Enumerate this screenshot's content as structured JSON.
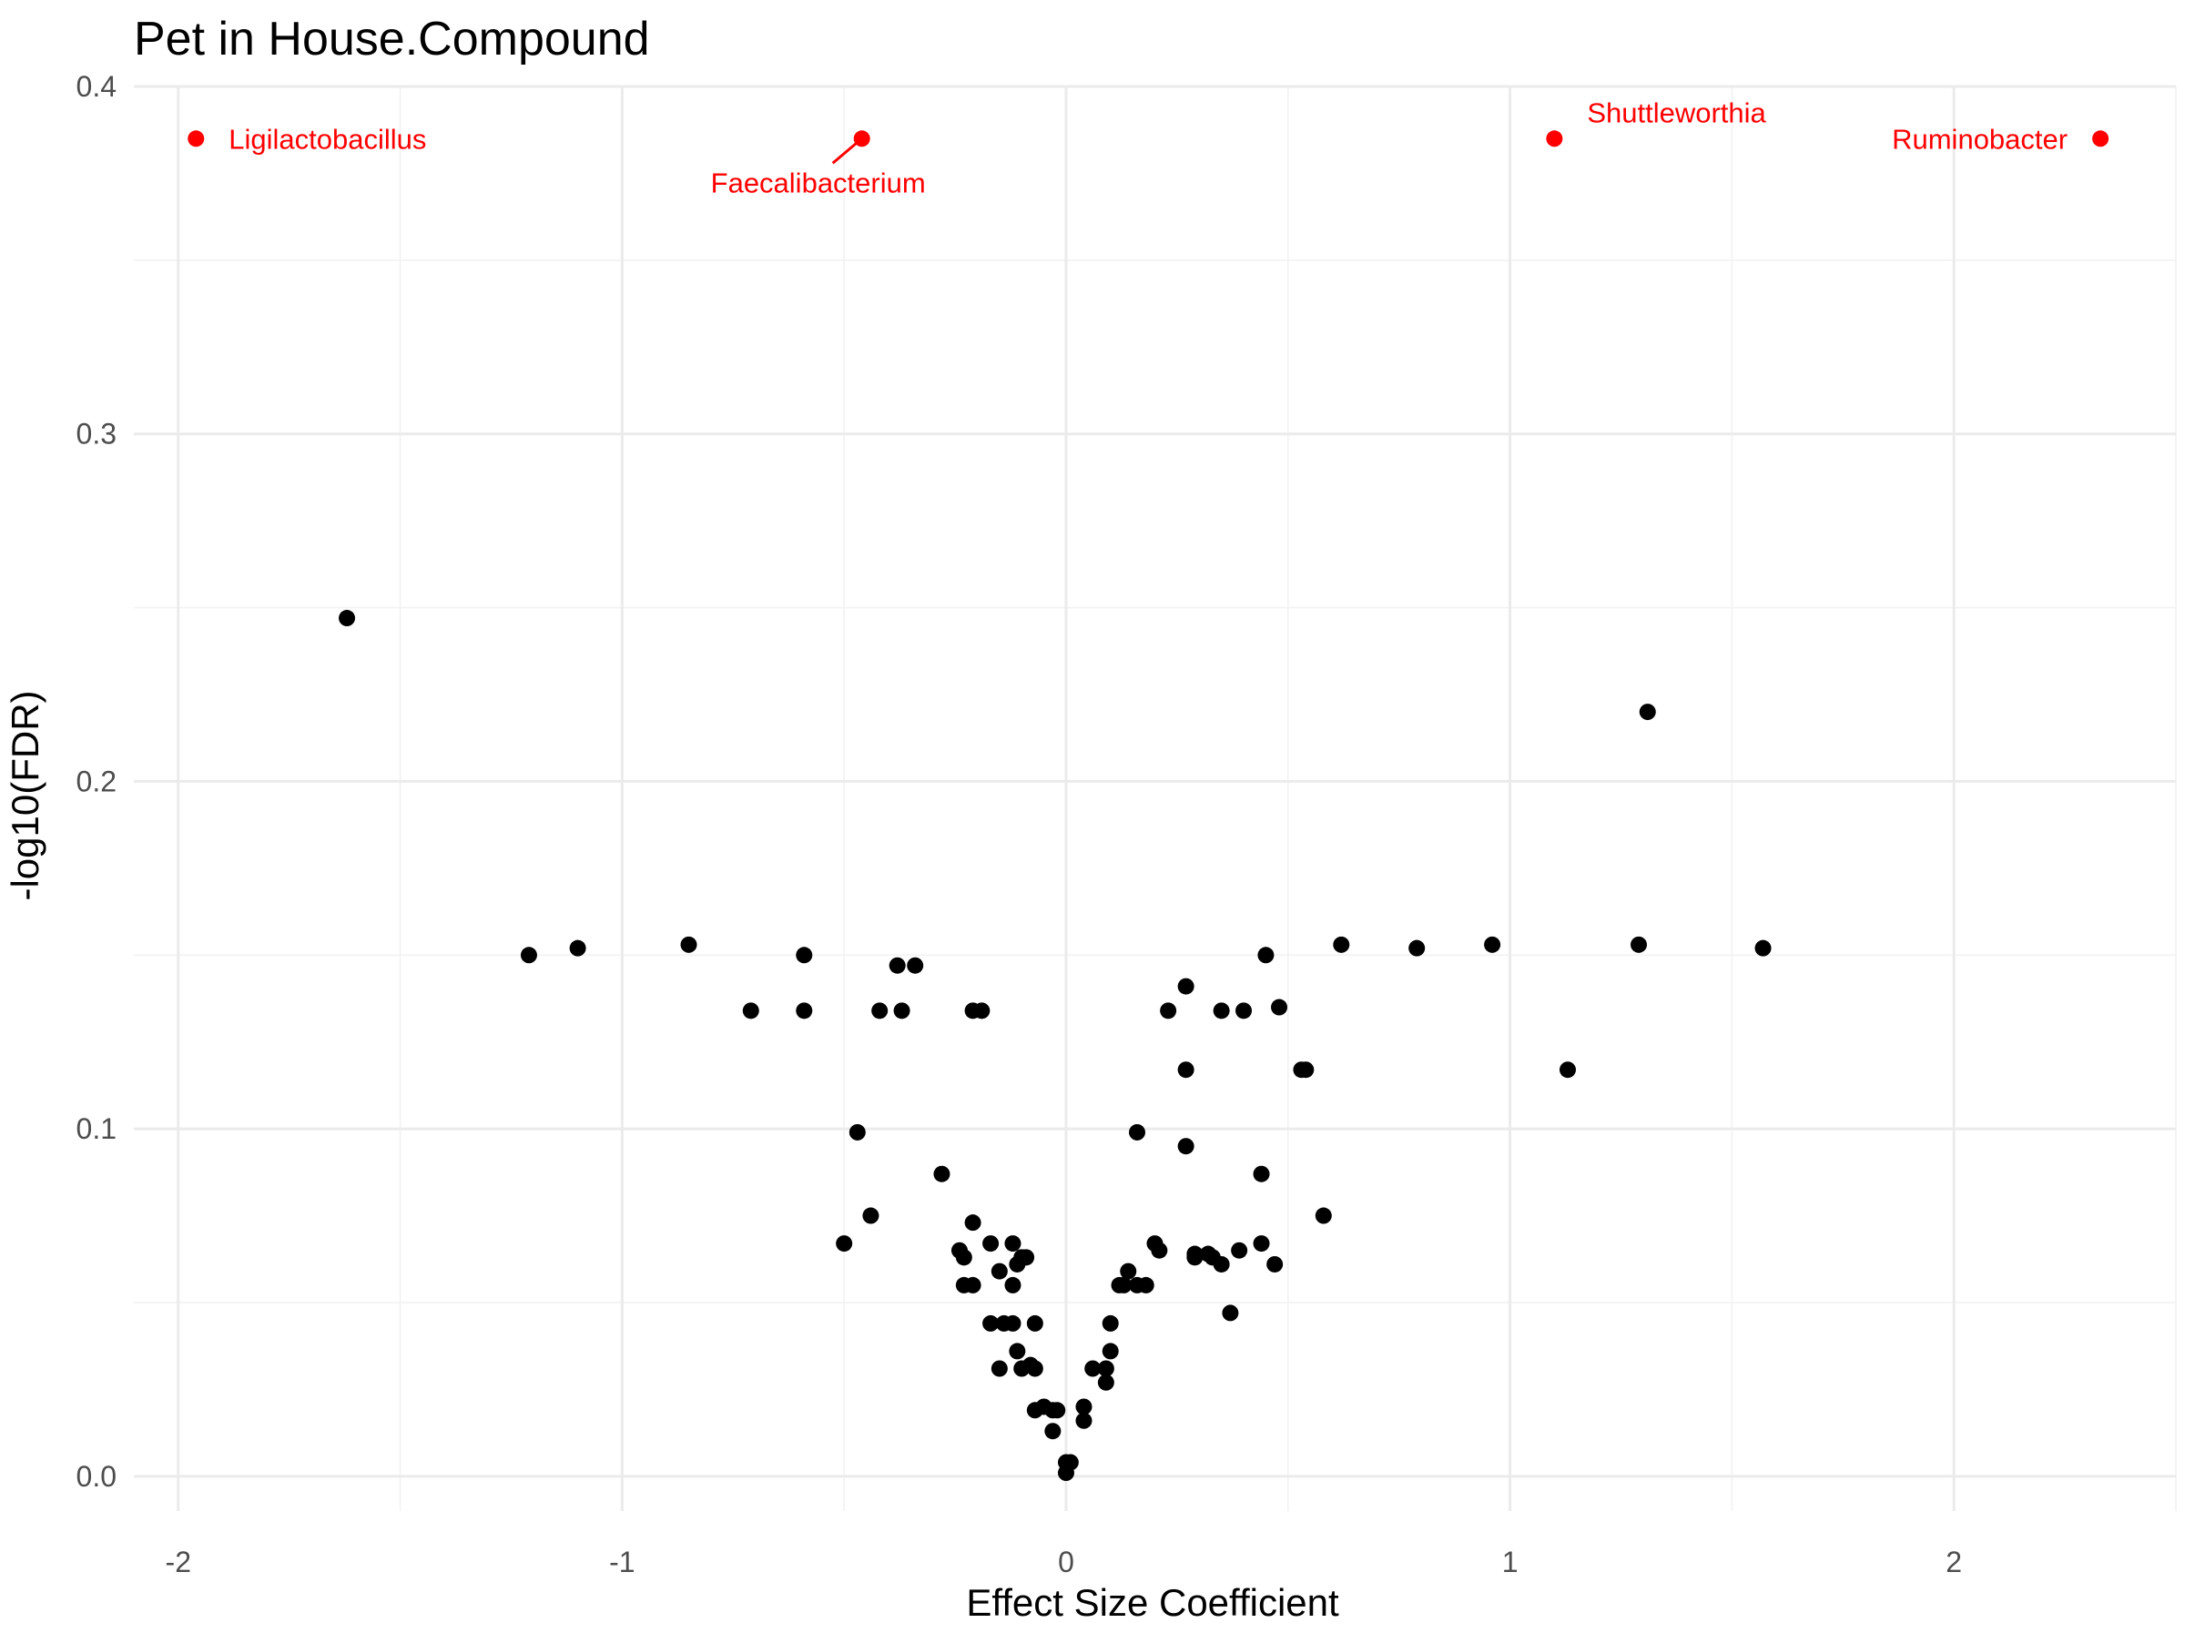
{
  "chart_data": {
    "type": "scatter",
    "title": "Pet in House.Compound",
    "xlabel": "Effect Size Coefficient",
    "ylabel": "-log10(FDR)",
    "xlim": [
      -2.1,
      2.5
    ],
    "ylim": [
      -0.01,
      0.4
    ],
    "x_ticks": [
      -2,
      -1,
      0,
      1,
      2
    ],
    "x_tick_labels": [
      "-2",
      "-1",
      "0",
      "1",
      "2"
    ],
    "y_ticks": [
      0.0,
      0.1,
      0.2,
      0.3,
      0.4
    ],
    "y_tick_labels": [
      "0.0",
      "0.1",
      "0.2",
      "0.3",
      "0.4"
    ],
    "grid": true,
    "highlight_color": "#ff0000",
    "point_color": "#000000",
    "highlighted": [
      {
        "name": "Ligilactobacillus",
        "x": -1.96,
        "y": 0.385,
        "label_side": "right"
      },
      {
        "name": "Faecalibacterium",
        "x": -0.46,
        "y": 0.385,
        "label_side": "below-left"
      },
      {
        "name": "Shuttleworthia",
        "x": 1.1,
        "y": 0.385,
        "label_side": "above-right"
      },
      {
        "name": "Ruminobacter",
        "x": 2.33,
        "y": 0.385,
        "label_side": "left"
      }
    ],
    "points": [
      [
        -1.62,
        0.247
      ],
      [
        1.31,
        0.22
      ],
      [
        -1.21,
        0.15
      ],
      [
        -1.1,
        0.152
      ],
      [
        -0.85,
        0.153
      ],
      [
        -0.59,
        0.15
      ],
      [
        -0.38,
        0.147
      ],
      [
        -0.34,
        0.147
      ],
      [
        0.45,
        0.15
      ],
      [
        0.62,
        0.153
      ],
      [
        0.79,
        0.152
      ],
      [
        0.96,
        0.153
      ],
      [
        1.29,
        0.153
      ],
      [
        1.57,
        0.152
      ],
      [
        -0.71,
        0.134
      ],
      [
        -0.59,
        0.134
      ],
      [
        -0.42,
        0.134
      ],
      [
        -0.37,
        0.134
      ],
      [
        -0.21,
        0.134
      ],
      [
        -0.19,
        0.134
      ],
      [
        0.23,
        0.134
      ],
      [
        0.27,
        0.141
      ],
      [
        0.35,
        0.134
      ],
      [
        0.4,
        0.134
      ],
      [
        0.48,
        0.135
      ],
      [
        0.27,
        0.117
      ],
      [
        0.53,
        0.117
      ],
      [
        0.54,
        0.117
      ],
      [
        1.13,
        0.117
      ],
      [
        -0.47,
        0.099
      ],
      [
        0.16,
        0.099
      ],
      [
        0.27,
        0.095
      ],
      [
        -0.28,
        0.087
      ],
      [
        0.44,
        0.087
      ],
      [
        -0.44,
        0.075
      ],
      [
        0.58,
        0.075
      ],
      [
        -0.21,
        0.073
      ],
      [
        -0.5,
        0.067
      ],
      [
        -0.17,
        0.067
      ],
      [
        -0.12,
        0.067
      ],
      [
        0.2,
        0.067
      ],
      [
        0.44,
        0.067
      ],
      [
        -0.24,
        0.065
      ],
      [
        -0.23,
        0.063
      ],
      [
        -0.11,
        0.061
      ],
      [
        -0.1,
        0.063
      ],
      [
        -0.09,
        0.063
      ],
      [
        0.21,
        0.065
      ],
      [
        0.29,
        0.064
      ],
      [
        0.29,
        0.063
      ],
      [
        0.32,
        0.064
      ],
      [
        0.33,
        0.063
      ],
      [
        0.35,
        0.061
      ],
      [
        0.39,
        0.065
      ],
      [
        0.47,
        0.061
      ],
      [
        -0.15,
        0.059
      ],
      [
        -0.23,
        0.055
      ],
      [
        -0.21,
        0.055
      ],
      [
        -0.12,
        0.055
      ],
      [
        0.12,
        0.055
      ],
      [
        0.14,
        0.059
      ],
      [
        0.16,
        0.055
      ],
      [
        0.18,
        0.055
      ],
      [
        0.13,
        0.055
      ],
      [
        0.37,
        0.047
      ],
      [
        -0.17,
        0.044
      ],
      [
        -0.14,
        0.044
      ],
      [
        -0.12,
        0.044
      ],
      [
        -0.07,
        0.044
      ],
      [
        0.1,
        0.044
      ],
      [
        -0.11,
        0.036
      ],
      [
        -0.1,
        0.031
      ],
      [
        -0.08,
        0.032
      ],
      [
        -0.07,
        0.031
      ],
      [
        -0.15,
        0.031
      ],
      [
        0.1,
        0.036
      ],
      [
        0.06,
        0.031
      ],
      [
        0.09,
        0.031
      ],
      [
        0.09,
        0.027
      ],
      [
        -0.07,
        0.019
      ],
      [
        -0.05,
        0.02
      ],
      [
        -0.03,
        0.019
      ],
      [
        -0.02,
        0.019
      ],
      [
        0.04,
        0.02
      ],
      [
        0.04,
        0.016
      ],
      [
        -0.03,
        0.013
      ],
      [
        0.0,
        0.004
      ],
      [
        0.01,
        0.004
      ],
      [
        0.0,
        0.001
      ]
    ]
  }
}
